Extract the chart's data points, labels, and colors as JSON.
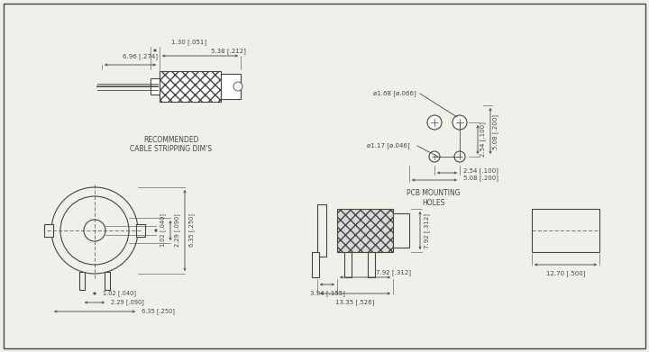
{
  "bg_color": "#f0f0eb",
  "line_color": "#444444",
  "cable_strip": {
    "label": "RECOMMENDED\nCABLE STRIPPING DIM'S",
    "dim1": "6.96 [.274]",
    "dim2": "1.30 [.051]",
    "dim3": "5.38 [.212]"
  },
  "pcb_holes": {
    "label": "PCB MOUNTING\nHOLES",
    "dia1": "ø1.68 [ø.066]",
    "dia2": "ø1.17 [ø.046]",
    "dim_h1": "2.54 [.100]",
    "dim_h2": "5.08 [.200]",
    "dim_v1": "2.54 [.100]",
    "dim_v2": "5.08 [.200]"
  },
  "front_view": {
    "dim_r1": "1.02 [.040]",
    "dim_r2": "2.29 [.090]",
    "dim_r3": "6.35 [.250]",
    "dim_b1": "1.02 [.040]",
    "dim_b2": "2.29 [.090]",
    "dim_b3": "6.35 [.250]"
  },
  "side_view": {
    "dim1": "3.94 [.155]",
    "dim2": "7.92 [.312]",
    "dim3": "13.35 [.526]",
    "dim4": "7.92 [.312]"
  },
  "right_view": {
    "dim1": "12.70 [.500]"
  }
}
